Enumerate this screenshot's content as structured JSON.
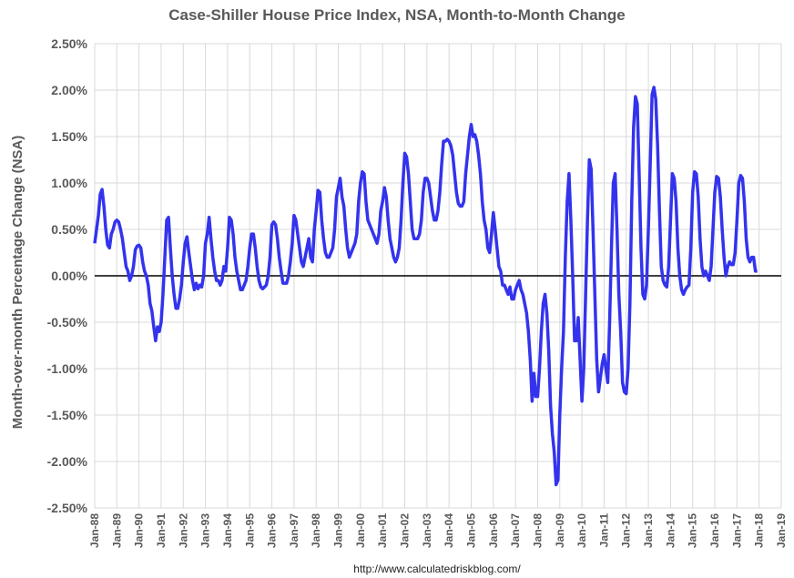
{
  "chart_data": {
    "type": "line",
    "title": "Case-Shiller House Price Index, NSA, Month-to-Month Change",
    "y_label": "Month-over-month Percentage Change (NSA)",
    "source": "http://www.calculatedriskblog.com/",
    "categories": [
      "Jan-88",
      null,
      null,
      null,
      null,
      null,
      null,
      null,
      null,
      null,
      null,
      null,
      "Jan-89",
      null,
      null,
      null,
      null,
      null,
      null,
      null,
      null,
      null,
      null,
      null,
      "Jan-90",
      null,
      null,
      null,
      null,
      null,
      null,
      null,
      null,
      null,
      null,
      null,
      "Jan-91",
      null,
      null,
      null,
      null,
      null,
      null,
      null,
      null,
      null,
      null,
      null,
      "Jan-92",
      null,
      null,
      null,
      null,
      null,
      null,
      null,
      null,
      null,
      null,
      null,
      "Jan-93",
      null,
      null,
      null,
      null,
      null,
      null,
      null,
      null,
      null,
      null,
      null,
      "Jan-94",
      null,
      null,
      null,
      null,
      null,
      null,
      null,
      null,
      null,
      null,
      null,
      "Jan-95",
      null,
      null,
      null,
      null,
      null,
      null,
      null,
      null,
      null,
      null,
      null,
      "Jan-96",
      null,
      null,
      null,
      null,
      null,
      null,
      null,
      null,
      null,
      null,
      null,
      "Jan-97",
      null,
      null,
      null,
      null,
      null,
      null,
      null,
      null,
      null,
      null,
      null,
      "Jan-98",
      null,
      null,
      null,
      null,
      null,
      null,
      null,
      null,
      null,
      null,
      null,
      "Jan-99",
      null,
      null,
      null,
      null,
      null,
      null,
      null,
      null,
      null,
      null,
      null,
      "Jan-00",
      null,
      null,
      null,
      null,
      null,
      null,
      null,
      null,
      null,
      null,
      null,
      "Jan-01",
      null,
      null,
      null,
      null,
      null,
      null,
      null,
      null,
      null,
      null,
      null,
      "Jan-02",
      null,
      null,
      null,
      null,
      null,
      null,
      null,
      null,
      null,
      null,
      null,
      "Jan-03",
      null,
      null,
      null,
      null,
      null,
      null,
      null,
      null,
      null,
      null,
      null,
      "Jan-04",
      null,
      null,
      null,
      null,
      null,
      null,
      null,
      null,
      null,
      null,
      null,
      "Jan-05",
      null,
      null,
      null,
      null,
      null,
      null,
      null,
      null,
      null,
      null,
      null,
      "Jan-06",
      null,
      null,
      null,
      null,
      null,
      null,
      null,
      null,
      null,
      null,
      null,
      "Jan-07",
      null,
      null,
      null,
      null,
      null,
      null,
      null,
      null,
      null,
      null,
      null,
      "Jan-08",
      null,
      null,
      null,
      null,
      null,
      null,
      null,
      null,
      null,
      null,
      null,
      "Jan-09",
      null,
      null,
      null,
      null,
      null,
      null,
      null,
      null,
      null,
      null,
      null,
      "Jan-10",
      null,
      null,
      null,
      null,
      null,
      null,
      null,
      null,
      null,
      null,
      null,
      "Jan-11",
      null,
      null,
      null,
      null,
      null,
      null,
      null,
      null,
      null,
      null,
      null,
      "Jan-12",
      null,
      null,
      null,
      null,
      null,
      null,
      null,
      null,
      null,
      null,
      null,
      "Jan-13",
      null,
      null,
      null,
      null,
      null,
      null,
      null,
      null,
      null,
      null,
      null,
      "Jan-14",
      null,
      null,
      null,
      null,
      null,
      null,
      null,
      null,
      null,
      null,
      null,
      "Jan-15",
      null,
      null,
      null,
      null,
      null,
      null,
      null,
      null,
      null,
      null,
      null,
      "Jan-16",
      null,
      null,
      null,
      null,
      null,
      null,
      null,
      null,
      null,
      null,
      null,
      "Jan-17",
      null,
      null,
      null,
      null,
      null,
      null,
      null,
      null,
      null,
      null,
      null,
      "Jan-18",
      null,
      null,
      null,
      null,
      null,
      null,
      null,
      null,
      null,
      null,
      null,
      "Jan-19"
    ],
    "series": [
      {
        "name": "Month-to-Month Change",
        "color": "#3333ee",
        "values": [
          0.35,
          0.5,
          0.65,
          0.88,
          0.93,
          0.75,
          0.5,
          0.33,
          0.3,
          0.45,
          0.5,
          0.58,
          0.6,
          0.58,
          0.5,
          0.4,
          0.25,
          0.1,
          0.05,
          -0.05,
          0.0,
          0.1,
          0.28,
          0.32,
          0.33,
          0.3,
          0.15,
          0.05,
          0.0,
          -0.1,
          -0.3,
          -0.38,
          -0.55,
          -0.7,
          -0.55,
          -0.6,
          -0.5,
          -0.2,
          0.2,
          0.6,
          0.63,
          0.3,
          0.0,
          -0.2,
          -0.35,
          -0.35,
          -0.25,
          -0.1,
          0.15,
          0.35,
          0.42,
          0.25,
          0.1,
          -0.05,
          -0.15,
          -0.08,
          -0.14,
          -0.1,
          -0.12,
          0.0,
          0.35,
          0.45,
          0.63,
          0.4,
          0.2,
          0.05,
          -0.05,
          -0.05,
          -0.1,
          -0.05,
          0.1,
          0.05,
          0.3,
          0.63,
          0.6,
          0.45,
          0.2,
          0.05,
          -0.05,
          -0.15,
          -0.15,
          -0.1,
          -0.05,
          0.1,
          0.3,
          0.45,
          0.45,
          0.3,
          0.1,
          -0.05,
          -0.12,
          -0.14,
          -0.12,
          -0.1,
          0.0,
          0.2,
          0.55,
          0.58,
          0.55,
          0.4,
          0.2,
          0.05,
          -0.08,
          -0.08,
          -0.08,
          0.0,
          0.15,
          0.35,
          0.65,
          0.6,
          0.45,
          0.3,
          0.15,
          0.1,
          0.2,
          0.3,
          0.4,
          0.2,
          0.15,
          0.5,
          0.7,
          0.92,
          0.9,
          0.6,
          0.4,
          0.25,
          0.2,
          0.2,
          0.25,
          0.3,
          0.5,
          0.85,
          0.95,
          1.05,
          0.85,
          0.75,
          0.5,
          0.3,
          0.2,
          0.25,
          0.3,
          0.35,
          0.45,
          0.8,
          1.0,
          1.12,
          1.1,
          0.8,
          0.6,
          0.55,
          0.5,
          0.45,
          0.4,
          0.35,
          0.45,
          0.7,
          0.8,
          0.95,
          0.85,
          0.6,
          0.4,
          0.3,
          0.2,
          0.15,
          0.2,
          0.3,
          0.6,
          1.0,
          1.32,
          1.28,
          1.1,
          0.8,
          0.5,
          0.4,
          0.4,
          0.4,
          0.45,
          0.6,
          0.9,
          1.05,
          1.05,
          1.0,
          0.85,
          0.7,
          0.6,
          0.6,
          0.7,
          0.9,
          1.2,
          1.45,
          1.45,
          1.47,
          1.45,
          1.4,
          1.3,
          1.1,
          0.9,
          0.78,
          0.75,
          0.75,
          0.8,
          1.1,
          1.3,
          1.5,
          1.63,
          1.5,
          1.52,
          1.45,
          1.3,
          1.1,
          0.8,
          0.6,
          0.5,
          0.3,
          0.25,
          0.45,
          0.68,
          0.5,
          0.3,
          0.1,
          0.05,
          -0.1,
          -0.1,
          -0.15,
          -0.2,
          -0.12,
          -0.25,
          -0.25,
          -0.15,
          -0.1,
          -0.05,
          -0.15,
          -0.2,
          -0.3,
          -0.4,
          -0.6,
          -0.9,
          -1.35,
          -1.05,
          -1.3,
          -1.3,
          -1.0,
          -0.6,
          -0.3,
          -0.2,
          -0.4,
          -0.8,
          -1.4,
          -1.7,
          -1.9,
          -2.25,
          -2.2,
          -1.5,
          -1.0,
          -0.6,
          0.2,
          0.8,
          1.1,
          0.6,
          0.0,
          -0.7,
          -0.7,
          -0.45,
          -0.9,
          -1.35,
          -1.0,
          -0.2,
          0.6,
          1.25,
          1.15,
          0.5,
          -0.2,
          -0.9,
          -1.25,
          -1.1,
          -0.95,
          -0.85,
          -1.0,
          -1.15,
          -0.5,
          0.3,
          1.0,
          1.1,
          0.5,
          -0.2,
          -0.6,
          -1.15,
          -1.25,
          -1.27,
          -1.0,
          -0.3,
          0.8,
          1.6,
          1.93,
          1.85,
          1.1,
          0.3,
          -0.2,
          -0.25,
          -0.1,
          0.5,
          1.2,
          1.95,
          2.03,
          1.9,
          1.4,
          0.7,
          0.1,
          -0.05,
          -0.1,
          -0.12,
          0.1,
          0.6,
          1.1,
          1.05,
          0.8,
          0.3,
          0.0,
          -0.15,
          -0.2,
          -0.15,
          -0.12,
          -0.1,
          0.3,
          0.9,
          1.12,
          1.1,
          0.85,
          0.4,
          0.1,
          0.0,
          0.05,
          0.0,
          -0.05,
          0.1,
          0.5,
          0.9,
          1.07,
          1.05,
          0.85,
          0.5,
          0.2,
          0.0,
          0.1,
          0.15,
          0.12,
          0.12,
          0.25,
          0.6,
          1.0,
          1.08,
          1.05,
          0.8,
          0.4,
          0.2,
          0.15,
          0.2,
          0.2,
          0.05,
          0.05,
          null,
          null,
          null,
          null,
          null,
          null,
          null,
          null,
          null,
          null,
          null,
          null,
          null
        ]
      }
    ],
    "ylim": [
      -2.5,
      2.5
    ],
    "yticks": [
      {
        "value": -2.5,
        "label": "-2.50%"
      },
      {
        "value": -2.0,
        "label": "-2.00%"
      },
      {
        "value": -1.5,
        "label": "-1.50%"
      },
      {
        "value": -1.0,
        "label": "-1.00%"
      },
      {
        "value": -0.5,
        "label": "-0.50%"
      },
      {
        "value": 0,
        "label": "0.00%"
      },
      {
        "value": 0.5,
        "label": "0.50%"
      },
      {
        "value": 1.0,
        "label": "1.00%"
      },
      {
        "value": 1.5,
        "label": "1.50%"
      },
      {
        "value": 2.0,
        "label": "2.00%"
      },
      {
        "value": 2.5,
        "label": "2.50%"
      }
    ],
    "grid": true
  }
}
